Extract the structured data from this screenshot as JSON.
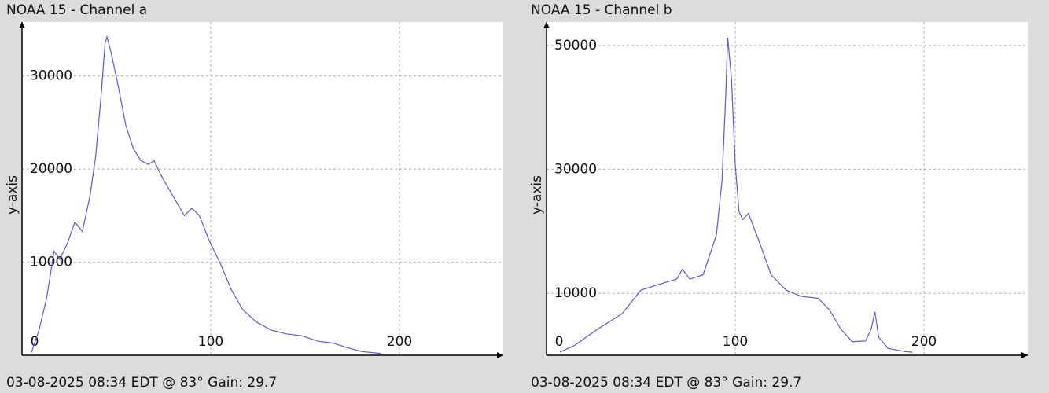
{
  "chart_data": [
    {
      "type": "line",
      "title": "NOAA 15 - Channel a",
      "y_label": "y-axis",
      "footer": "03-08-2025 08:34 EDT @ 83° Gain: 29.7",
      "color": "#5a5ad6",
      "grid": true,
      "x": [
        5,
        9,
        13,
        17,
        20,
        24,
        28,
        32,
        36,
        39,
        42,
        44,
        45,
        47,
        51,
        55,
        59,
        63,
        67,
        70,
        74,
        80,
        86,
        90,
        94,
        99,
        105,
        111,
        117,
        124,
        132,
        140,
        148,
        157,
        165,
        171,
        180,
        190
      ],
      "values": [
        300,
        2700,
        6100,
        11200,
        10300,
        12000,
        14300,
        13300,
        17100,
        21300,
        28100,
        33500,
        34200,
        32700,
        28900,
        24700,
        22200,
        20900,
        20500,
        20900,
        19200,
        17100,
        15000,
        15800,
        15000,
        12400,
        9900,
        7000,
        4900,
        3600,
        2700,
        2300,
        2100,
        1500,
        1300,
        900,
        400,
        200
      ],
      "xlim": [
        0,
        255
      ],
      "xticks": [
        0,
        100,
        200
      ],
      "ylim": [
        0,
        35800
      ],
      "yticks": [
        10000,
        20000,
        30000
      ]
    },
    {
      "type": "line",
      "title": "NOAA 15 - Channel b",
      "y_label": "y-axis",
      "footer": "03-08-2025 08:34 EDT @ 83° Gain: 29.7",
      "color": "#5a5ad6",
      "grid": true,
      "x": [
        7,
        15,
        27,
        40,
        50,
        60,
        69,
        72,
        76,
        83,
        90,
        93,
        95,
        96,
        98,
        100,
        102,
        104,
        107,
        113,
        119,
        127,
        135,
        144,
        150,
        156,
        162,
        169,
        172,
        174,
        176,
        181,
        190,
        194
      ],
      "values": [
        500,
        1600,
        4200,
        6700,
        10500,
        11500,
        12300,
        13900,
        12300,
        13000,
        19400,
        28200,
        42200,
        51300,
        44700,
        30800,
        23200,
        21900,
        22900,
        18100,
        13000,
        10500,
        9500,
        9200,
        7300,
        4200,
        2200,
        2300,
        4200,
        7000,
        2900,
        1100,
        600,
        500
      ],
      "xlim": [
        0,
        255
      ],
      "xticks": [
        0,
        100,
        200
      ],
      "ylim": [
        0,
        53800
      ],
      "yticks": [
        10000,
        30000,
        50000
      ]
    }
  ]
}
